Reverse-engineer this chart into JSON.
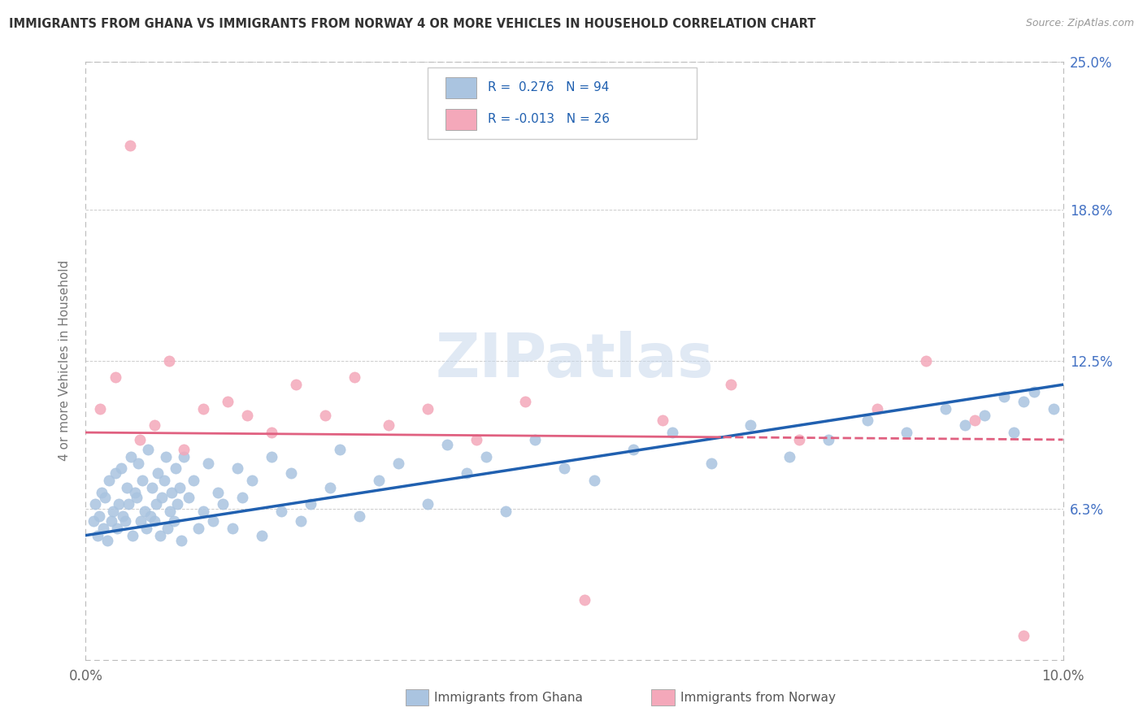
{
  "title": "IMMIGRANTS FROM GHANA VS IMMIGRANTS FROM NORWAY 4 OR MORE VEHICLES IN HOUSEHOLD CORRELATION CHART",
  "source": "Source: ZipAtlas.com",
  "ylabel": "4 or more Vehicles in Household",
  "xlim": [
    0.0,
    10.0
  ],
  "ylim": [
    0.0,
    25.0
  ],
  "y_ticks": [
    6.3,
    12.5,
    18.8,
    25.0
  ],
  "y_tick_labels": [
    "6.3%",
    "12.5%",
    "18.8%",
    "25.0%"
  ],
  "ghana_color": "#aac4e0",
  "norway_color": "#f4a8ba",
  "ghana_line_color": "#2060b0",
  "norway_line_color": "#e06080",
  "ghana_R": 0.276,
  "ghana_N": 94,
  "norway_R": -0.013,
  "norway_N": 26,
  "legend_label_ghana": "Immigrants from Ghana",
  "legend_label_norway": "Immigrants from Norway",
  "watermark": "ZIPatlas",
  "ghana_x": [
    0.08,
    0.1,
    0.12,
    0.14,
    0.16,
    0.18,
    0.2,
    0.22,
    0.24,
    0.26,
    0.28,
    0.3,
    0.32,
    0.34,
    0.36,
    0.38,
    0.4,
    0.42,
    0.44,
    0.46,
    0.48,
    0.5,
    0.52,
    0.54,
    0.56,
    0.58,
    0.6,
    0.62,
    0.64,
    0.66,
    0.68,
    0.7,
    0.72,
    0.74,
    0.76,
    0.78,
    0.8,
    0.82,
    0.84,
    0.86,
    0.88,
    0.9,
    0.92,
    0.94,
    0.96,
    0.98,
    1.0,
    1.05,
    1.1,
    1.15,
    1.2,
    1.25,
    1.3,
    1.35,
    1.4,
    1.5,
    1.55,
    1.6,
    1.7,
    1.8,
    1.9,
    2.0,
    2.1,
    2.2,
    2.3,
    2.5,
    2.6,
    2.8,
    3.0,
    3.2,
    3.5,
    3.7,
    3.9,
    4.1,
    4.3,
    4.6,
    4.9,
    5.2,
    5.6,
    6.0,
    6.4,
    6.8,
    7.2,
    7.6,
    8.0,
    8.4,
    8.8,
    9.0,
    9.2,
    9.4,
    9.5,
    9.6,
    9.7,
    9.9
  ],
  "ghana_y": [
    5.8,
    6.5,
    5.2,
    6.0,
    7.0,
    5.5,
    6.8,
    5.0,
    7.5,
    5.8,
    6.2,
    7.8,
    5.5,
    6.5,
    8.0,
    6.0,
    5.8,
    7.2,
    6.5,
    8.5,
    5.2,
    7.0,
    6.8,
    8.2,
    5.8,
    7.5,
    6.2,
    5.5,
    8.8,
    6.0,
    7.2,
    5.8,
    6.5,
    7.8,
    5.2,
    6.8,
    7.5,
    8.5,
    5.5,
    6.2,
    7.0,
    5.8,
    8.0,
    6.5,
    7.2,
    5.0,
    8.5,
    6.8,
    7.5,
    5.5,
    6.2,
    8.2,
    5.8,
    7.0,
    6.5,
    5.5,
    8.0,
    6.8,
    7.5,
    5.2,
    8.5,
    6.2,
    7.8,
    5.8,
    6.5,
    7.2,
    8.8,
    6.0,
    7.5,
    8.2,
    6.5,
    9.0,
    7.8,
    8.5,
    6.2,
    9.2,
    8.0,
    7.5,
    8.8,
    9.5,
    8.2,
    9.8,
    8.5,
    9.2,
    10.0,
    9.5,
    10.5,
    9.8,
    10.2,
    11.0,
    9.5,
    10.8,
    11.2,
    10.5
  ],
  "norway_x": [
    0.15,
    0.3,
    0.45,
    0.55,
    0.7,
    0.85,
    1.0,
    1.2,
    1.45,
    1.65,
    1.9,
    2.15,
    2.45,
    2.75,
    3.1,
    3.5,
    4.0,
    4.5,
    5.1,
    5.9,
    6.6,
    7.3,
    8.1,
    8.6,
    9.1,
    9.6
  ],
  "norway_y": [
    10.5,
    11.8,
    21.5,
    9.2,
    9.8,
    12.5,
    8.8,
    10.5,
    10.8,
    10.2,
    9.5,
    11.5,
    10.2,
    11.8,
    9.8,
    10.5,
    9.2,
    10.8,
    2.5,
    10.0,
    11.5,
    9.2,
    10.5,
    12.5,
    10.0,
    1.0
  ]
}
